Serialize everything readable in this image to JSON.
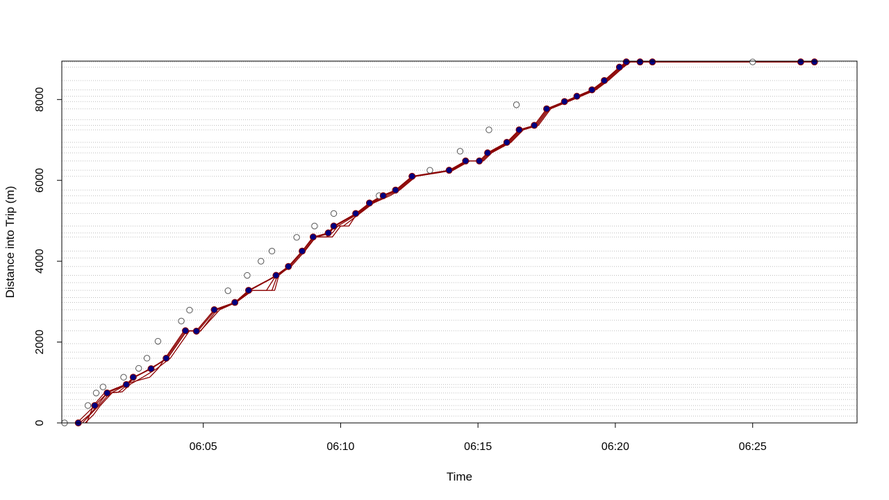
{
  "chart_data": {
    "type": "scatter",
    "xlabel": "Time",
    "ylabel": "Distance into Trip (m)",
    "x_unit": "minutes past 06:00",
    "xlim": [
      -0.15,
      28.8
    ],
    "ylim": [
      0,
      8950
    ],
    "x_ticks": [
      {
        "value": 5,
        "label": "06:05"
      },
      {
        "value": 10,
        "label": "06:10"
      },
      {
        "value": 15,
        "label": "06:15"
      },
      {
        "value": 20,
        "label": "06:20"
      },
      {
        "value": 25,
        "label": "06:25"
      }
    ],
    "y_ticks": [
      {
        "value": 0,
        "label": "0"
      },
      {
        "value": 2000,
        "label": "2000"
      },
      {
        "value": 4000,
        "label": "4000"
      },
      {
        "value": 6000,
        "label": "6000"
      },
      {
        "value": 8000,
        "label": "8000"
      }
    ],
    "stop_distances": [
      0,
      170,
      330,
      430,
      580,
      740,
      880,
      950,
      1130,
      1340,
      1600,
      1750,
      1960,
      2280,
      2540,
      2800,
      2980,
      3100,
      3280,
      3470,
      3650,
      3870,
      4080,
      4250,
      4600,
      4700,
      4870,
      5180,
      5440,
      5620,
      5760,
      6100,
      6250,
      6480,
      6680,
      6820,
      6940,
      7250,
      7360,
      7500,
      7770,
      7950,
      8080,
      8240,
      8470,
      8800,
      8930
    ],
    "grid_color": "#bdbdbd",
    "observed_color": "#555555",
    "predicted_color": "#000080",
    "path_color": "#8b0000",
    "observed_points": [
      [
        -0.05,
        0
      ],
      [
        0.8,
        430
      ],
      [
        1.1,
        740
      ],
      [
        1.35,
        890
      ],
      [
        2.1,
        1130
      ],
      [
        2.65,
        1350
      ],
      [
        2.95,
        1600
      ],
      [
        3.35,
        2020
      ],
      [
        4.2,
        2520
      ],
      [
        4.5,
        2790
      ],
      [
        5.9,
        3270
      ],
      [
        6.6,
        3650
      ],
      [
        7.1,
        4000
      ],
      [
        7.5,
        4250
      ],
      [
        8.4,
        4590
      ],
      [
        9.05,
        4870
      ],
      [
        9.75,
        5180
      ],
      [
        11.4,
        5620
      ],
      [
        13.25,
        6250
      ],
      [
        14.35,
        6720
      ],
      [
        15.4,
        7250
      ],
      [
        16.4,
        7870
      ],
      [
        25.0,
        8930
      ]
    ],
    "predicted_points": [
      [
        0.45,
        0
      ],
      [
        1.05,
        430
      ],
      [
        1.5,
        740
      ],
      [
        2.2,
        950
      ],
      [
        2.45,
        1130
      ],
      [
        3.1,
        1340
      ],
      [
        3.65,
        1600
      ],
      [
        4.35,
        2280
      ],
      [
        4.75,
        2270
      ],
      [
        5.4,
        2800
      ],
      [
        6.15,
        2980
      ],
      [
        6.65,
        3280
      ],
      [
        7.65,
        3650
      ],
      [
        8.1,
        3870
      ],
      [
        8.6,
        4250
      ],
      [
        9.0,
        4600
      ],
      [
        9.55,
        4700
      ],
      [
        9.75,
        4870
      ],
      [
        10.55,
        5180
      ],
      [
        11.05,
        5440
      ],
      [
        11.55,
        5620
      ],
      [
        12.0,
        5760
      ],
      [
        12.6,
        6100
      ],
      [
        13.95,
        6250
      ],
      [
        14.55,
        6480
      ],
      [
        15.05,
        6480
      ],
      [
        15.35,
        6680
      ],
      [
        16.05,
        6940
      ],
      [
        16.5,
        7250
      ],
      [
        17.05,
        7360
      ],
      [
        17.5,
        7770
      ],
      [
        18.15,
        7950
      ],
      [
        18.6,
        8080
      ],
      [
        19.15,
        8240
      ],
      [
        19.6,
        8470
      ],
      [
        20.15,
        8800
      ],
      [
        20.4,
        8930
      ],
      [
        20.9,
        8930
      ],
      [
        21.35,
        8930
      ],
      [
        26.75,
        8930
      ],
      [
        27.25,
        8930
      ]
    ],
    "paths": [
      [
        [
          0.5,
          0
        ],
        [
          0.85,
          200
        ],
        [
          1.15,
          430
        ],
        [
          1.5,
          740
        ],
        [
          1.9,
          760
        ],
        [
          2.25,
          950
        ],
        [
          2.5,
          1130
        ],
        [
          3.05,
          1340
        ],
        [
          3.7,
          1600
        ],
        [
          4.4,
          2280
        ],
        [
          4.8,
          2270
        ],
        [
          5.45,
          2800
        ],
        [
          6.15,
          2980
        ],
        [
          6.7,
          3280
        ],
        [
          7.7,
          3650
        ],
        [
          8.1,
          3870
        ],
        [
          8.6,
          4250
        ],
        [
          9.05,
          4600
        ],
        [
          9.6,
          4700
        ],
        [
          9.8,
          4870
        ],
        [
          10.6,
          5180
        ],
        [
          11.1,
          5440
        ],
        [
          11.6,
          5620
        ],
        [
          12.05,
          5760
        ],
        [
          12.65,
          6100
        ],
        [
          14.0,
          6250
        ],
        [
          14.6,
          6480
        ],
        [
          15.1,
          6480
        ],
        [
          15.4,
          6680
        ],
        [
          16.1,
          6940
        ],
        [
          16.55,
          7250
        ],
        [
          17.1,
          7360
        ],
        [
          17.55,
          7770
        ],
        [
          18.2,
          7950
        ],
        [
          18.65,
          8080
        ],
        [
          19.2,
          8240
        ],
        [
          19.65,
          8470
        ],
        [
          20.2,
          8800
        ],
        [
          20.45,
          8930
        ],
        [
          27.3,
          8930
        ]
      ],
      [
        [
          0.6,
          0
        ],
        [
          0.95,
          250
        ],
        [
          1.2,
          430
        ],
        [
          1.6,
          740
        ],
        [
          2.05,
          770
        ],
        [
          2.35,
          960
        ],
        [
          2.8,
          1130
        ],
        [
          3.3,
          1340
        ],
        [
          3.8,
          1600
        ],
        [
          4.5,
          2280
        ],
        [
          4.9,
          2270
        ],
        [
          5.5,
          2800
        ],
        [
          6.2,
          2980
        ],
        [
          6.8,
          3280
        ],
        [
          7.6,
          3280
        ],
        [
          7.75,
          3650
        ],
        [
          8.15,
          3870
        ],
        [
          8.65,
          4250
        ],
        [
          9.1,
          4600
        ],
        [
          9.7,
          4700
        ],
        [
          9.9,
          4870
        ],
        [
          10.65,
          5180
        ],
        [
          11.15,
          5440
        ],
        [
          11.7,
          5620
        ],
        [
          12.1,
          5760
        ],
        [
          12.7,
          6100
        ],
        [
          14.05,
          6250
        ],
        [
          14.65,
          6480
        ],
        [
          15.15,
          6480
        ],
        [
          15.45,
          6680
        ],
        [
          16.15,
          6940
        ],
        [
          16.6,
          7250
        ],
        [
          17.15,
          7360
        ],
        [
          17.6,
          7770
        ],
        [
          18.25,
          7950
        ],
        [
          18.7,
          8080
        ],
        [
          19.25,
          8240
        ],
        [
          19.7,
          8470
        ],
        [
          20.25,
          8800
        ],
        [
          20.5,
          8930
        ],
        [
          27.3,
          8930
        ]
      ],
      [
        [
          0.7,
          0
        ],
        [
          1.0,
          200
        ],
        [
          1.25,
          430
        ],
        [
          1.7,
          760
        ],
        [
          2.35,
          1000
        ],
        [
          3.05,
          1130
        ],
        [
          3.35,
          1340
        ],
        [
          4.3,
          2280
        ],
        [
          4.9,
          2280
        ],
        [
          5.6,
          2800
        ],
        [
          6.2,
          2980
        ],
        [
          6.75,
          3280
        ],
        [
          7.5,
          3280
        ],
        [
          7.7,
          3650
        ],
        [
          8.2,
          3870
        ],
        [
          8.7,
          4250
        ],
        [
          9.1,
          4600
        ],
        [
          9.7,
          4600
        ],
        [
          10.0,
          4870
        ],
        [
          10.1,
          4870
        ],
        [
          10.7,
          5180
        ],
        [
          11.2,
          5440
        ],
        [
          11.8,
          5620
        ],
        [
          12.15,
          5760
        ],
        [
          12.75,
          6100
        ],
        [
          14.1,
          6250
        ],
        [
          14.7,
          6480
        ],
        [
          15.2,
          6480
        ],
        [
          15.5,
          6680
        ],
        [
          16.2,
          6940
        ],
        [
          16.65,
          7250
        ],
        [
          17.2,
          7360
        ],
        [
          17.65,
          7770
        ],
        [
          18.3,
          7950
        ],
        [
          18.75,
          8080
        ],
        [
          19.3,
          8240
        ],
        [
          19.75,
          8470
        ],
        [
          20.3,
          8800
        ],
        [
          20.55,
          8930
        ],
        [
          27.3,
          8930
        ]
      ],
      [
        [
          0.75,
          0
        ],
        [
          1.0,
          430
        ],
        [
          1.4,
          740
        ],
        [
          2.2,
          960
        ],
        [
          2.5,
          1130
        ],
        [
          3.1,
          1340
        ],
        [
          3.7,
          1600
        ],
        [
          4.4,
          2280
        ],
        [
          4.75,
          2280
        ],
        [
          5.4,
          2800
        ],
        [
          6.15,
          2980
        ],
        [
          6.65,
          3280
        ],
        [
          7.3,
          3280
        ],
        [
          7.65,
          3650
        ],
        [
          8.1,
          3870
        ],
        [
          8.6,
          4250
        ],
        [
          9.0,
          4600
        ],
        [
          9.5,
          4600
        ],
        [
          9.75,
          4870
        ],
        [
          10.3,
          4870
        ],
        [
          10.6,
          5180
        ],
        [
          11.05,
          5440
        ],
        [
          11.5,
          5620
        ],
        [
          12.0,
          5760
        ],
        [
          12.6,
          6100
        ],
        [
          13.95,
          6250
        ],
        [
          14.55,
          6480
        ],
        [
          15.05,
          6480
        ],
        [
          15.35,
          6680
        ],
        [
          16.05,
          6940
        ],
        [
          16.5,
          7250
        ],
        [
          17.05,
          7360
        ],
        [
          17.5,
          7770
        ],
        [
          18.15,
          7950
        ],
        [
          18.6,
          8080
        ],
        [
          19.15,
          8240
        ],
        [
          19.6,
          8470
        ],
        [
          20.15,
          8800
        ],
        [
          20.4,
          8930
        ],
        [
          27.3,
          8930
        ]
      ],
      [
        [
          0.4,
          0
        ],
        [
          1.05,
          430
        ],
        [
          1.5,
          740
        ],
        [
          2.2,
          950
        ],
        [
          2.45,
          1130
        ],
        [
          3.1,
          1340
        ],
        [
          3.65,
          1600
        ],
        [
          4.35,
          2280
        ],
        [
          4.75,
          2270
        ],
        [
          5.4,
          2800
        ],
        [
          6.15,
          2980
        ],
        [
          6.65,
          3280
        ],
        [
          7.4,
          3550
        ],
        [
          7.65,
          3650
        ],
        [
          8.1,
          3870
        ],
        [
          8.6,
          4250
        ],
        [
          9.0,
          4600
        ],
        [
          9.55,
          4700
        ],
        [
          9.75,
          4870
        ],
        [
          10.55,
          5180
        ],
        [
          11.05,
          5440
        ],
        [
          11.55,
          5620
        ],
        [
          12.0,
          5760
        ],
        [
          12.6,
          6100
        ],
        [
          13.95,
          6250
        ],
        [
          14.55,
          6480
        ],
        [
          15.05,
          6480
        ],
        [
          15.35,
          6680
        ],
        [
          16.05,
          6940
        ],
        [
          16.5,
          7250
        ],
        [
          17.05,
          7360
        ],
        [
          17.5,
          7770
        ],
        [
          18.15,
          7950
        ],
        [
          18.6,
          8080
        ],
        [
          19.15,
          8240
        ],
        [
          19.6,
          8470
        ],
        [
          20.15,
          8800
        ],
        [
          20.4,
          8930
        ],
        [
          27.3,
          8930
        ]
      ]
    ]
  }
}
